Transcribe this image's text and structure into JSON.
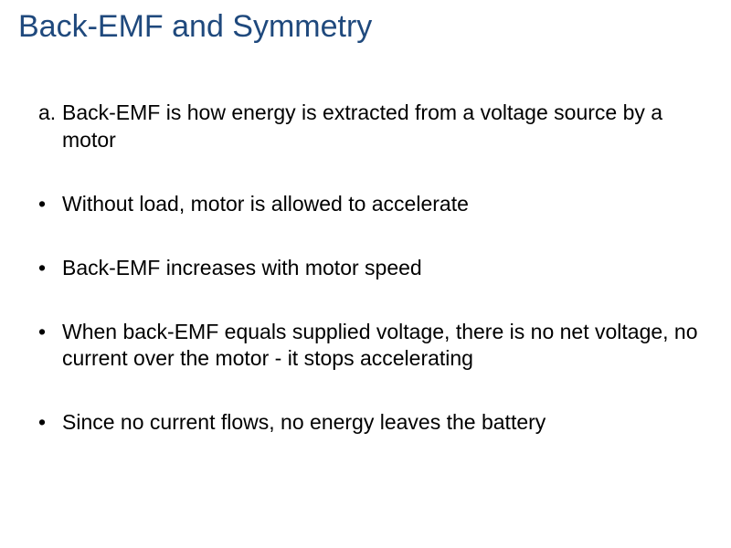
{
  "slide": {
    "title": "Back-EMF and Symmetry",
    "title_color": "#1f497d",
    "title_fontsize": 34,
    "body_fontsize": 23,
    "body_color": "#000000",
    "background_color": "#ffffff",
    "items": [
      {
        "marker": "a.",
        "text": "Back-EMF is how energy is extracted from a voltage source by a motor"
      },
      {
        "marker": "•",
        "text": "Without load, motor is allowed to accelerate"
      },
      {
        "marker": "•",
        "text": "Back-EMF increases with motor speed"
      },
      {
        "marker": "•",
        "text": "When back-EMF equals supplied voltage, there is no net voltage, no current over the motor - it stops accelerating"
      },
      {
        "marker": "•",
        "text": "Since no current flows, no energy leaves the battery"
      }
    ]
  }
}
